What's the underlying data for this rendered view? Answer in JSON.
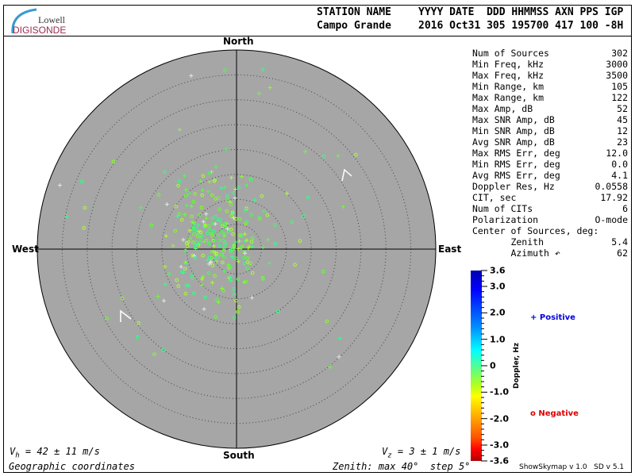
{
  "logo": {
    "line1": "Lowell",
    "line2": "DIGISONDE"
  },
  "header": {
    "station_label": "STATION NAME",
    "station_value": "Campo Grande",
    "cols_label": "YYYY DATE  DDD HHMMSS AXN PPS IGP",
    "cols_value": "2016 Oct31 305 195700 417 100 -8H"
  },
  "directions": {
    "north": "North",
    "south": "South",
    "east": "East",
    "west": "West"
  },
  "stats": [
    {
      "label": "Num of Sources",
      "value": "302"
    },
    {
      "label": "Min Freq, kHz",
      "value": "3000"
    },
    {
      "label": "Max Freq, kHz",
      "value": "3500"
    },
    {
      "label": "Min Range, km",
      "value": "105"
    },
    {
      "label": "Max Range, km",
      "value": "122"
    },
    {
      "label": "Max Amp, dB",
      "value": "52"
    },
    {
      "label": "Max SNR Amp, dB",
      "value": "45"
    },
    {
      "label": "Min SNR Amp, dB",
      "value": "12"
    },
    {
      "label": "Avg SNR Amp, dB",
      "value": "23"
    },
    {
      "label": "Max RMS Err, deg",
      "value": "12.0"
    },
    {
      "label": "Min RMS Err, deg",
      "value": "0.0"
    },
    {
      "label": "Avg RMS Err, deg",
      "value": "4.1"
    },
    {
      "label": "Doppler Res, Hz",
      "value": "0.0558"
    },
    {
      "label": "CIT, sec",
      "value": "17.92"
    },
    {
      "label": "Num of CITs",
      "value": "6"
    },
    {
      "label": "Polarization",
      "value": "O-mode"
    },
    {
      "label": "Center of Sources, deg:",
      "value": ""
    },
    {
      "label": "       Zenith",
      "value": "5.4"
    },
    {
      "label": "       Azimuth ↶",
      "value": "62"
    }
  ],
  "colorbar": {
    "title": "Doppler, Hz",
    "ticks": [
      "3.6",
      "3.0",
      "2.0",
      "1.0",
      "0",
      "-1.0",
      "-2.0",
      "-3.0",
      "-3.6"
    ],
    "tick_values": [
      3.6,
      3.0,
      2.0,
      1.0,
      0,
      -1.0,
      -2.0,
      -3.0,
      -3.6
    ],
    "range": [
      -3.6,
      3.6
    ]
  },
  "legend": {
    "positive": "Positive",
    "negative": "Negative",
    "positive_color": "#0000dd",
    "negative_color": "#dd0000"
  },
  "footer": {
    "vh": "= 42 ± 11 m/s",
    "vz": "= 3 ± 1 m/s",
    "coords": "Geographic coordinates",
    "zenith": "Zenith: max 40°  step 5°",
    "version": "ShowSkymap v 1.0   SD v 5.1"
  },
  "plot": {
    "zenith_max_deg": 40,
    "zenith_step_deg": 5,
    "background": "#a6a6a6"
  }
}
